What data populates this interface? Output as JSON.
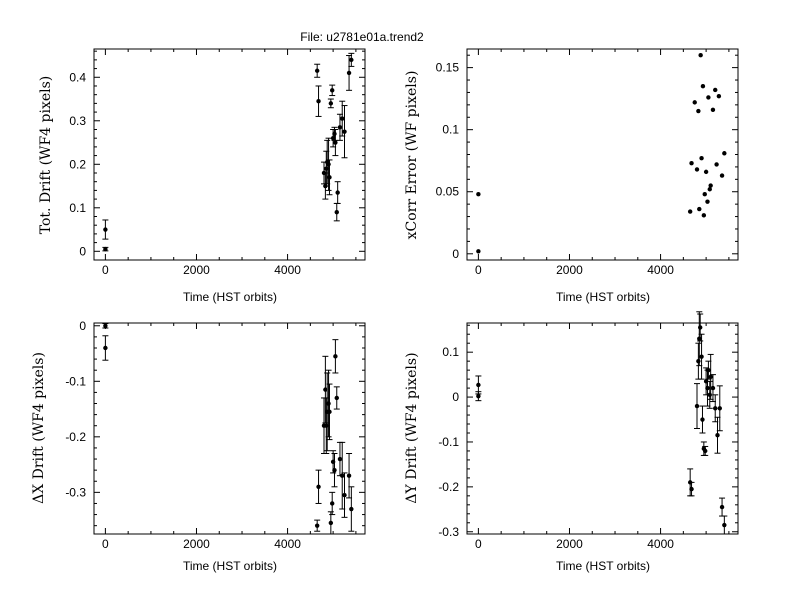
{
  "figure": {
    "title": "File: u2781e01a.trend2"
  },
  "chart_data": [
    {
      "type": "scatter",
      "xlabel": "Time (HST orbits)",
      "ylabel": "Tot. Drift (WF4 pixels)",
      "xlim": [
        -250,
        5700
      ],
      "ylim": [
        -0.02,
        0.465
      ],
      "xticks": [
        0,
        2000,
        4000
      ],
      "xtick_labels": [
        "0",
        "2000",
        "4000"
      ],
      "yticks": [
        0,
        0.1,
        0.2,
        0.3,
        0.4
      ],
      "ytick_labels": [
        "0",
        "0.1",
        "0.2",
        "0.3",
        "0.4"
      ],
      "grid": false,
      "points": [
        {
          "x": 0,
          "y": 0.005,
          "err": 0.004
        },
        {
          "x": 0,
          "y": 0.05,
          "err": 0.022
        },
        {
          "x": 4650,
          "y": 0.415,
          "err": 0.015
        },
        {
          "x": 4680,
          "y": 0.345,
          "err": 0.035
        },
        {
          "x": 4800,
          "y": 0.18,
          "err": 0.025
        },
        {
          "x": 4830,
          "y": 0.15,
          "err": 0.03
        },
        {
          "x": 4850,
          "y": 0.19,
          "err": 0.04
        },
        {
          "x": 4870,
          "y": 0.205,
          "err": 0.05
        },
        {
          "x": 4900,
          "y": 0.2,
          "err": 0.06
        },
        {
          "x": 4920,
          "y": 0.17,
          "err": 0.04
        },
        {
          "x": 4950,
          "y": 0.34,
          "err": 0.01
        },
        {
          "x": 4980,
          "y": 0.37,
          "err": 0.012
        },
        {
          "x": 5000,
          "y": 0.26,
          "err": 0.02
        },
        {
          "x": 5030,
          "y": 0.27,
          "err": 0.015
        },
        {
          "x": 5050,
          "y": 0.25,
          "err": 0.03
        },
        {
          "x": 5080,
          "y": 0.09,
          "err": 0.02
        },
        {
          "x": 5100,
          "y": 0.135,
          "err": 0.025
        },
        {
          "x": 5150,
          "y": 0.285,
          "err": 0.03
        },
        {
          "x": 5200,
          "y": 0.305,
          "err": 0.04
        },
        {
          "x": 5250,
          "y": 0.275,
          "err": 0.06
        },
        {
          "x": 5350,
          "y": 0.41,
          "err": 0.04
        },
        {
          "x": 5400,
          "y": 0.44,
          "err": 0.015
        }
      ]
    },
    {
      "type": "scatter",
      "xlabel": "Time (HST orbits)",
      "ylabel": "xCorr Error (WF pixels)",
      "xlim": [
        -250,
        5700
      ],
      "ylim": [
        -0.005,
        0.165
      ],
      "xticks": [
        0,
        2000,
        4000
      ],
      "xtick_labels": [
        "0",
        "2000",
        "4000"
      ],
      "yticks": [
        0,
        0.05,
        0.1,
        0.15
      ],
      "ytick_labels": [
        "0",
        "0.05",
        "0.1",
        "0.15"
      ],
      "grid": false,
      "points": [
        {
          "x": 0,
          "y": 0.002
        },
        {
          "x": 0,
          "y": 0.048
        },
        {
          "x": 4650,
          "y": 0.034
        },
        {
          "x": 4680,
          "y": 0.073
        },
        {
          "x": 4750,
          "y": 0.122
        },
        {
          "x": 4800,
          "y": 0.068
        },
        {
          "x": 4830,
          "y": 0.115
        },
        {
          "x": 4850,
          "y": 0.036
        },
        {
          "x": 4880,
          "y": 0.16
        },
        {
          "x": 4900,
          "y": 0.077
        },
        {
          "x": 4930,
          "y": 0.135
        },
        {
          "x": 4950,
          "y": 0.031
        },
        {
          "x": 4970,
          "y": 0.048
        },
        {
          "x": 5000,
          "y": 0.066
        },
        {
          "x": 5030,
          "y": 0.042
        },
        {
          "x": 5050,
          "y": 0.126
        },
        {
          "x": 5080,
          "y": 0.052
        },
        {
          "x": 5100,
          "y": 0.055
        },
        {
          "x": 5150,
          "y": 0.116
        },
        {
          "x": 5200,
          "y": 0.132
        },
        {
          "x": 5230,
          "y": 0.072
        },
        {
          "x": 5280,
          "y": 0.127
        },
        {
          "x": 5350,
          "y": 0.063
        },
        {
          "x": 5400,
          "y": 0.081
        }
      ]
    },
    {
      "type": "scatter",
      "xlabel": "Time (HST orbits)",
      "ylabel": "ΔX Drift (WF4 pixels)",
      "xlim": [
        -250,
        5700
      ],
      "ylim": [
        -0.375,
        0.005
      ],
      "xticks": [
        0,
        2000,
        4000
      ],
      "xtick_labels": [
        "0",
        "2000",
        "4000"
      ],
      "yticks": [
        0,
        -0.1,
        -0.2,
        -0.3
      ],
      "ytick_labels": [
        "0",
        "-0.1",
        "-0.2",
        "-0.3"
      ],
      "grid": false,
      "points": [
        {
          "x": 0,
          "y": 0.0,
          "err": 0.004
        },
        {
          "x": 0,
          "y": -0.04,
          "err": 0.022
        },
        {
          "x": 4650,
          "y": -0.36,
          "err": 0.01
        },
        {
          "x": 4680,
          "y": -0.29,
          "err": 0.03
        },
        {
          "x": 4800,
          "y": -0.18,
          "err": 0.05
        },
        {
          "x": 4830,
          "y": -0.115,
          "err": 0.06
        },
        {
          "x": 4850,
          "y": -0.18,
          "err": 0.05
        },
        {
          "x": 4870,
          "y": -0.155,
          "err": 0.07
        },
        {
          "x": 4900,
          "y": -0.14,
          "err": 0.06
        },
        {
          "x": 4920,
          "y": -0.155,
          "err": 0.05
        },
        {
          "x": 4950,
          "y": -0.355,
          "err": 0.02
        },
        {
          "x": 4980,
          "y": -0.32,
          "err": 0.02
        },
        {
          "x": 5000,
          "y": -0.245,
          "err": 0.02
        },
        {
          "x": 5030,
          "y": -0.26,
          "err": 0.03
        },
        {
          "x": 5050,
          "y": -0.055,
          "err": 0.03
        },
        {
          "x": 5080,
          "y": -0.13,
          "err": 0.02
        },
        {
          "x": 5150,
          "y": -0.24,
          "err": 0.03
        },
        {
          "x": 5200,
          "y": -0.27,
          "err": 0.06
        },
        {
          "x": 5250,
          "y": -0.305,
          "err": 0.04
        },
        {
          "x": 5350,
          "y": -0.27,
          "err": 0.04
        },
        {
          "x": 5400,
          "y": -0.33,
          "err": 0.04
        }
      ]
    },
    {
      "type": "scatter",
      "xlabel": "Time (HST orbits)",
      "ylabel": "ΔY Drift (WF4 pixels)",
      "xlim": [
        -250,
        5700
      ],
      "ylim": [
        -0.305,
        0.165
      ],
      "xticks": [
        0,
        2000,
        4000
      ],
      "xtick_labels": [
        "0",
        "2000",
        "4000"
      ],
      "yticks": [
        0.1,
        0,
        -0.1,
        -0.2,
        -0.3
      ],
      "ytick_labels": [
        "0.1",
        "0",
        "-0.1",
        "-0.2",
        "-0.3"
      ],
      "grid": false,
      "points": [
        {
          "x": 0,
          "y": 0.002,
          "err": 0.01
        },
        {
          "x": 0,
          "y": 0.027,
          "err": 0.02
        },
        {
          "x": 4650,
          "y": -0.19,
          "err": 0.03
        },
        {
          "x": 4680,
          "y": -0.205,
          "err": 0.015
        },
        {
          "x": 4800,
          "y": -0.02,
          "err": 0.05
        },
        {
          "x": 4830,
          "y": 0.08,
          "err": 0.04
        },
        {
          "x": 4850,
          "y": 0.13,
          "err": 0.06
        },
        {
          "x": 4870,
          "y": 0.155,
          "err": 0.03
        },
        {
          "x": 4900,
          "y": 0.09,
          "err": 0.05
        },
        {
          "x": 4920,
          "y": -0.05,
          "err": 0.03
        },
        {
          "x": 4950,
          "y": -0.115,
          "err": 0.015
        },
        {
          "x": 4980,
          "y": -0.12,
          "err": 0.01
        },
        {
          "x": 5000,
          "y": 0.035,
          "err": 0.03
        },
        {
          "x": 5030,
          "y": 0.02,
          "err": 0.04
        },
        {
          "x": 5050,
          "y": 0.06,
          "err": 0.02
        },
        {
          "x": 5080,
          "y": 0.005,
          "err": 0.03
        },
        {
          "x": 5100,
          "y": 0.045,
          "err": 0.05
        },
        {
          "x": 5150,
          "y": 0.02,
          "err": 0.03
        },
        {
          "x": 5200,
          "y": -0.025,
          "err": 0.03
        },
        {
          "x": 5250,
          "y": -0.085,
          "err": 0.04
        },
        {
          "x": 5300,
          "y": -0.025,
          "err": 0.05
        },
        {
          "x": 5350,
          "y": -0.245,
          "err": 0.02
        },
        {
          "x": 5400,
          "y": -0.285,
          "err": 0.02
        }
      ]
    }
  ]
}
